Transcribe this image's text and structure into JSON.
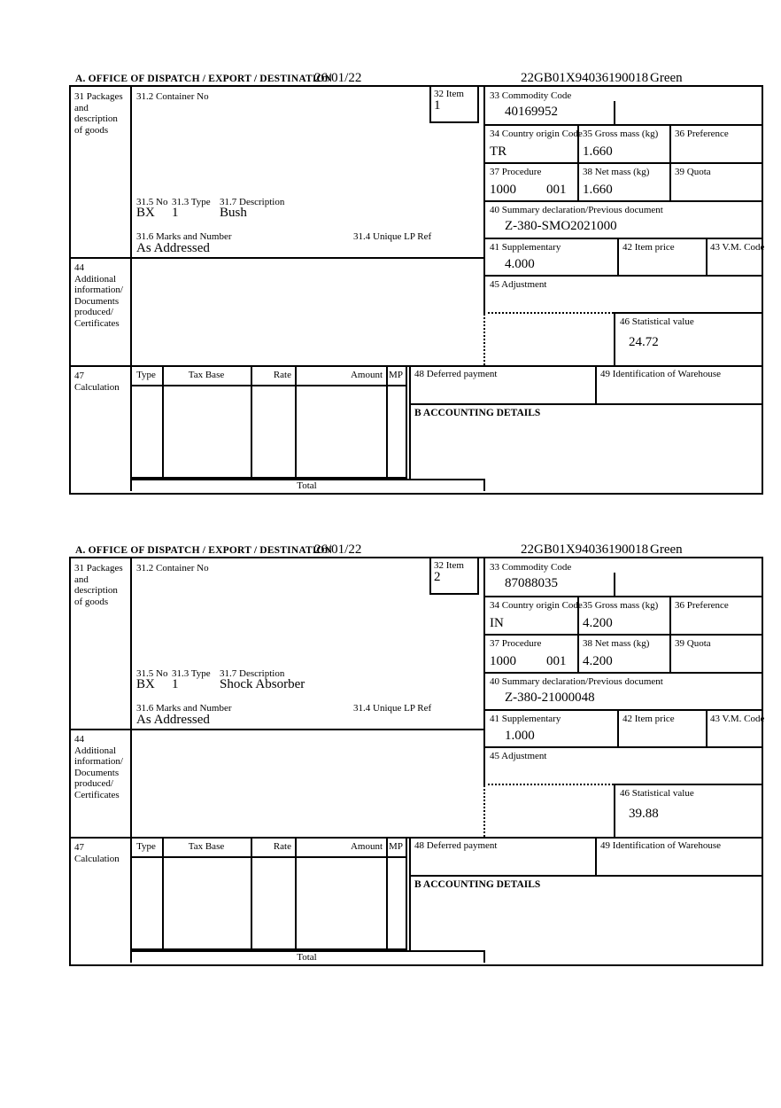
{
  "labels": {
    "header": "A.  OFFICE OF DISPATCH / EXPORT / DESTINATION",
    "box31": "31 Packages\nand\ndescription\nof goods",
    "box31_2": "31.2 Container No",
    "box32": "32 Item",
    "box33": "33 Commodity Code",
    "box34": "34 Country origin Code",
    "box35": "35 Gross mass (kg)",
    "box36": "36 Preference",
    "box37": "37 Procedure",
    "box38": "38 Net mass (kg)",
    "box39": "39 Quota",
    "box40": "40 Summary declaration/Previous document",
    "box41": "41 Supplementary",
    "box42": "42 Item price",
    "box43": "43 V.M. Code",
    "box44": "44\nAdditional\ninformation/\nDocuments\nproduced/\nCertificates",
    "box45": "45 Adjustment",
    "box46": "46 Statistical value",
    "box47": "47\nCalculation",
    "box48": "48 Deferred payment",
    "box49": "49 Identification of Warehouse",
    "box31_5": "31.5 No",
    "box31_3": "31.3 Type",
    "box31_7": "31.7 Description",
    "box31_6": "31.6 Marks and Number",
    "box31_4": "31.4 Unique LP Ref",
    "calc_type": "Type",
    "calc_tax_base": "Tax Base",
    "calc_rate": "Rate",
    "calc_amount": "Amount",
    "calc_mp": "MP",
    "accounting": "B ACCOUNTING DETAILS",
    "total": "Total"
  },
  "sections": [
    {
      "date": "26/01/22",
      "reference": "22GB01X94036190018",
      "routing": "Green",
      "item_no": "1",
      "commodity_code": "40169952",
      "country_origin_code": "TR",
      "gross_mass_kg": "1.660",
      "procedure": "1000",
      "procedure_additional": "001",
      "net_mass_kg": "1.660",
      "previous_document": "Z-380-SMO2021000",
      "supplementary_units": "4.000",
      "statistical_value": "24.72",
      "packages_no": "BX",
      "packages_type": "1",
      "goods_description": "Bush",
      "marks_and_number": "As Addressed"
    },
    {
      "date": "26/01/22",
      "reference": "22GB01X94036190018",
      "routing": "Green",
      "item_no": "2",
      "commodity_code": "87088035",
      "country_origin_code": "IN",
      "gross_mass_kg": "4.200",
      "procedure": "1000",
      "procedure_additional": "001",
      "net_mass_kg": "4.200",
      "previous_document": "Z-380-21000048",
      "supplementary_units": "1.000",
      "statistical_value": "39.88",
      "packages_no": "BX",
      "packages_type": "1",
      "goods_description": "Shock Absorber",
      "marks_and_number": "As Addressed"
    }
  ]
}
